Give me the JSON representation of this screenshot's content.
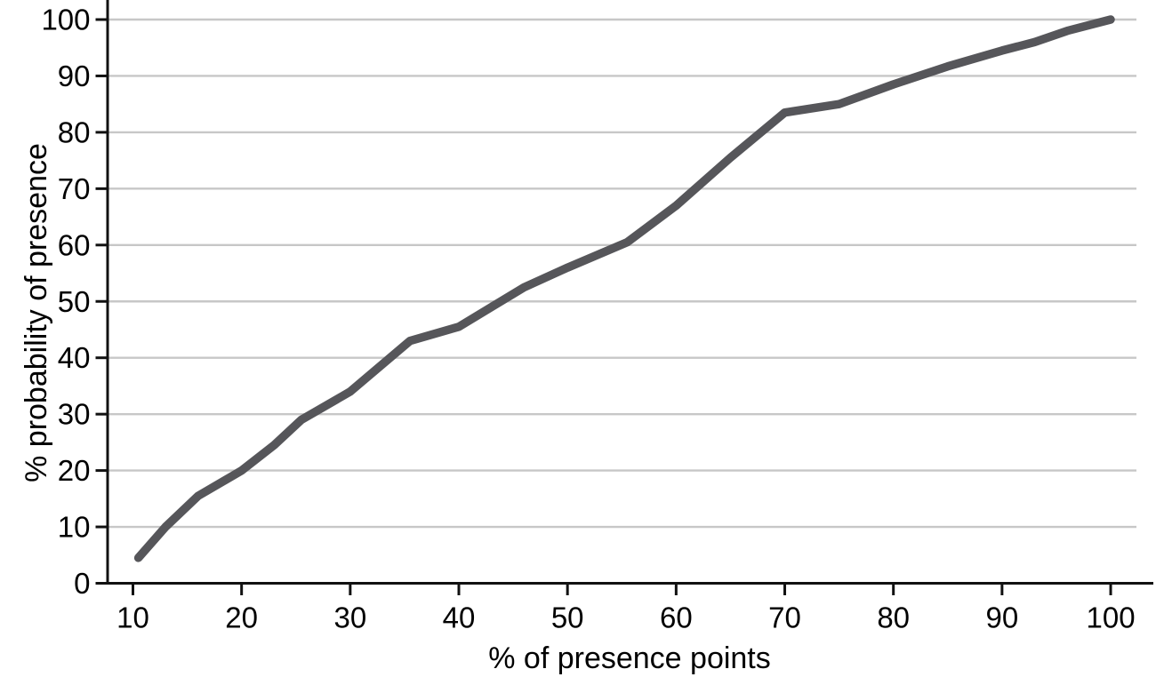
{
  "figure": {
    "background_color": "#ffffff",
    "axis_color": "#111111",
    "grid_color": "#c7c7c7",
    "line_color": "#56565a",
    "text_color": "#000000"
  },
  "chart_data": {
    "type": "line",
    "title": "",
    "xlabel": "% of presence points",
    "ylabel": "% probability of presence",
    "x_ticks": [
      10,
      20,
      30,
      40,
      50,
      60,
      70,
      80,
      90,
      100
    ],
    "y_ticks": [
      0,
      10,
      20,
      30,
      40,
      50,
      60,
      70,
      80,
      90,
      100
    ],
    "xlim": [
      7.7,
      102.5
    ],
    "ylim": [
      0,
      103
    ],
    "grid": "horizontal",
    "legend": "none",
    "series": [
      {
        "points": [
          [
            10.5,
            4.5
          ],
          [
            13,
            10
          ],
          [
            16,
            15.5
          ],
          [
            20,
            20
          ],
          [
            23,
            24.5
          ],
          [
            25.5,
            29
          ],
          [
            30,
            34
          ],
          [
            35.5,
            43
          ],
          [
            40,
            45.5
          ],
          [
            43,
            49
          ],
          [
            46,
            52.5
          ],
          [
            50,
            56
          ],
          [
            55.5,
            60.5
          ],
          [
            60,
            67
          ],
          [
            65,
            75.5
          ],
          [
            70,
            83.5
          ],
          [
            75,
            85
          ],
          [
            80,
            88.5
          ],
          [
            85,
            91.7
          ],
          [
            90,
            94.5
          ],
          [
            93,
            96
          ],
          [
            96,
            98
          ],
          [
            100,
            100
          ]
        ]
      }
    ]
  }
}
